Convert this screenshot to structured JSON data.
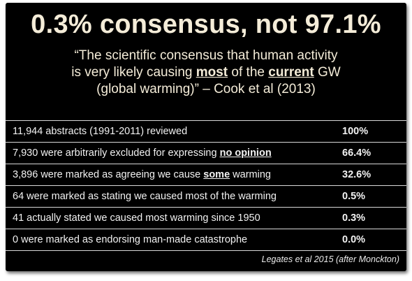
{
  "title": "0.3% consensus, not 97.1%",
  "quote": {
    "line1": "“The scientific consensus that human activity",
    "line2_a": "is very likely causing ",
    "line2_b": "most",
    "line2_c": " of the ",
    "line2_d": "current",
    "line2_e": " GW",
    "line3": "(global warming)” – Cook et al (2013)"
  },
  "rows": [
    {
      "desc": "11,944 abstracts (1991-2011) reviewed",
      "pct": "100%"
    },
    {
      "desc_a": "7,930 were arbitrarily excluded for expressing ",
      "desc_b": "no opinion",
      "pct": "66.4%"
    },
    {
      "desc_a": "3,896 were marked as agreeing we cause ",
      "desc_b": "some",
      "desc_c": " warming",
      "pct": "32.6%"
    },
    {
      "desc": "64 were marked as stating we caused most of the warming",
      "pct": "0.5%"
    },
    {
      "desc": "41 actually stated we caused most warming since 1950",
      "pct": "0.3%"
    },
    {
      "desc": "0 were marked as endorsing man-made catastrophe",
      "pct": "0.0%"
    }
  ],
  "source": "Legates et al 2015 (after Monckton)"
}
